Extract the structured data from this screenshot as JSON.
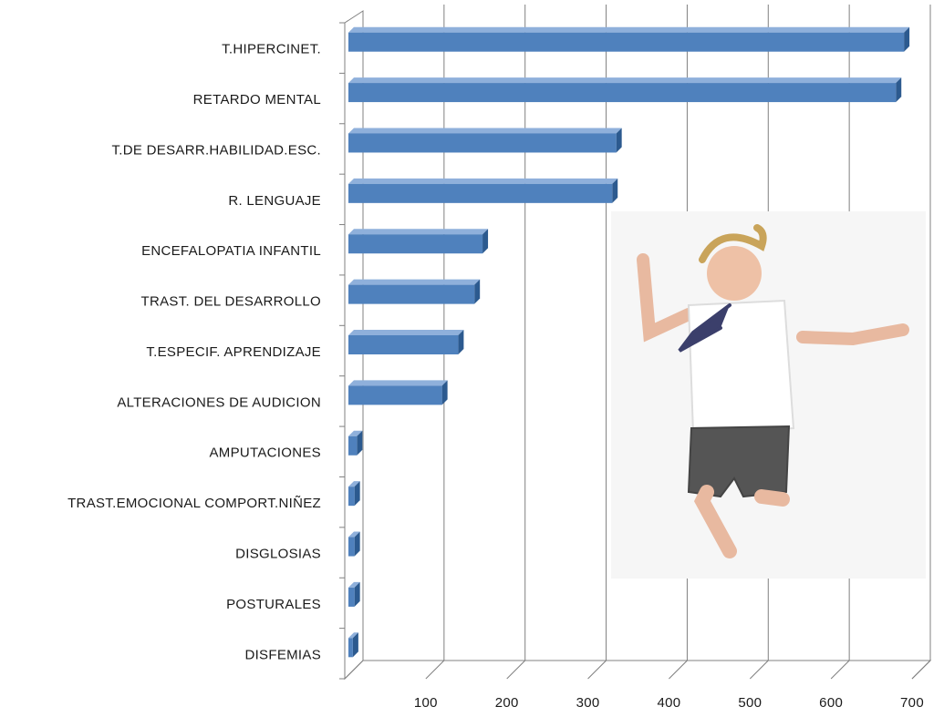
{
  "chart_data": {
    "type": "bar",
    "orientation": "horizontal",
    "categories": [
      "T.HIPERCINET.",
      "RETARDO MENTAL",
      "T.DE DESARR.HABILIDAD.ESC.",
      "R. LENGUAJE",
      "ENCEFALOPATIA INFANTIL",
      "TRAST. DEL DESARROLLO",
      "T.ESPECIF. APRENDIZAJE",
      "ALTERACIONES DE AUDICION",
      "AMPUTACIONES",
      "TRAST.EMOCIONAL COMPORT.NIÑEZ",
      "DISGLOSIAS",
      "POSTURALES",
      "DISFEMIAS"
    ],
    "values": [
      690,
      680,
      335,
      330,
      170,
      160,
      140,
      120,
      15,
      12,
      12,
      12,
      10
    ],
    "color": "#4f81bd",
    "xlim": [
      0,
      700
    ],
    "xticks": [
      100,
      200,
      300,
      400,
      500,
      600,
      700
    ],
    "grid": true
  }
}
